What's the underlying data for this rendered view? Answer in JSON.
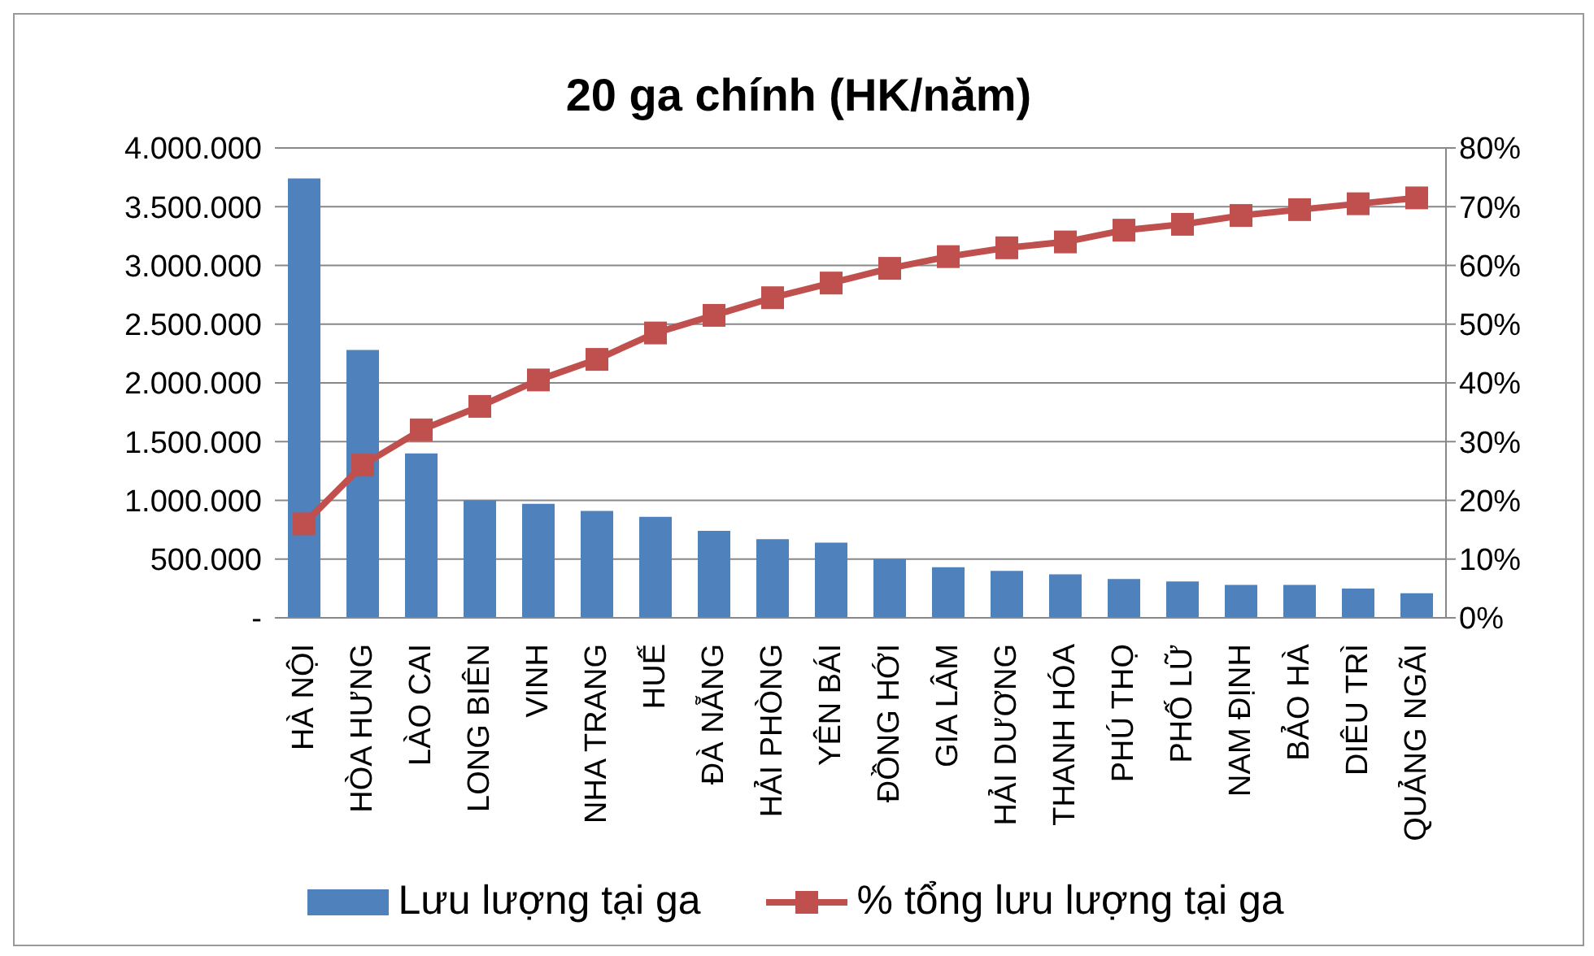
{
  "chart_data": {
    "type": "bar",
    "title": "20 ga chính (HK/năm)",
    "categories": [
      "HÀ NỘI",
      "HÒA HƯNG",
      "LÀO CAI",
      "LONG BIÊN",
      "VINH",
      "NHA TRANG",
      "HUẾ",
      "ĐÀ NẴNG",
      "HẢI PHÒNG",
      "YÊN BÁI",
      "ĐỒNG HỚI",
      "GIA LÂM",
      "HẢI DƯƠNG",
      "THANH HÓA",
      "PHÚ THỌ",
      "PHỐ LỮ",
      "NAM ĐỊNH",
      "BẢO HÀ",
      "DIÊU TRÌ",
      "QUẢNG NGÃI"
    ],
    "series": [
      {
        "name": "Lưu lượng tại ga",
        "color": "#4f81bd",
        "values": [
          3740000,
          2280000,
          1400000,
          1000000,
          970000,
          910000,
          860000,
          740000,
          670000,
          640000,
          500000,
          430000,
          400000,
          370000,
          330000,
          310000,
          280000,
          280000,
          250000,
          210000
        ]
      },
      {
        "name": "% tổng lưu lượng tại ga",
        "type": "line",
        "axis": "y2",
        "color": "#c0504d",
        "marker": "square",
        "values": [
          16,
          26,
          32,
          36,
          40.5,
          44,
          48.5,
          51.5,
          54.5,
          57,
          59.5,
          61.5,
          63,
          64,
          66,
          67,
          68.5,
          69.5,
          70.5,
          71.5
        ]
      }
    ],
    "ylim": [
      0,
      4000000
    ],
    "yticks": [
      {
        "value": 0,
        "label": "-"
      },
      {
        "value": 500000,
        "label": "500.000"
      },
      {
        "value": 1000000,
        "label": "1.000.000"
      },
      {
        "value": 1500000,
        "label": "1.500.000"
      },
      {
        "value": 2000000,
        "label": "2.000.000"
      },
      {
        "value": 2500000,
        "label": "2.500.000"
      },
      {
        "value": 3000000,
        "label": "3.000.000"
      },
      {
        "value": 3500000,
        "label": "3.500.000"
      },
      {
        "value": 4000000,
        "label": "4.000.000"
      }
    ],
    "y2lim": [
      0,
      80
    ],
    "y2ticks": [
      {
        "value": 0,
        "label": "0%"
      },
      {
        "value": 10,
        "label": "10%"
      },
      {
        "value": 20,
        "label": "20%"
      },
      {
        "value": 30,
        "label": "30%"
      },
      {
        "value": 40,
        "label": "40%"
      },
      {
        "value": 50,
        "label": "50%"
      },
      {
        "value": 60,
        "label": "60%"
      },
      {
        "value": 70,
        "label": "70%"
      },
      {
        "value": 80,
        "label": "80%"
      }
    ],
    "grid": "y",
    "legend": "bottom"
  }
}
